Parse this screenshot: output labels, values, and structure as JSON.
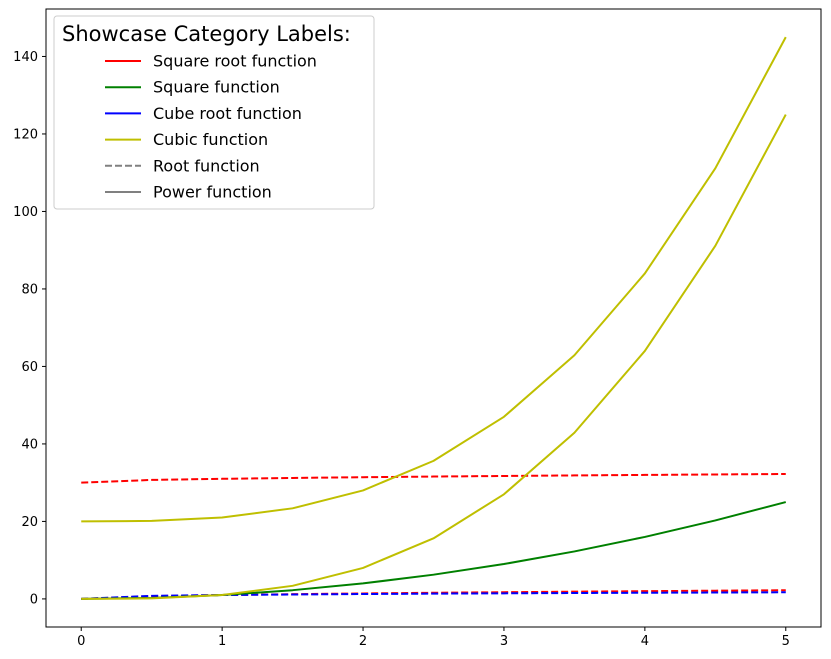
{
  "chart_data": {
    "type": "line",
    "title": "",
    "xlabel": "",
    "ylabel": "",
    "xlim": [
      -0.25,
      5.25
    ],
    "ylim": [
      -7.25,
      152.25
    ],
    "xticks": [
      0,
      1,
      2,
      3,
      4,
      5
    ],
    "yticks": [
      0,
      20,
      40,
      60,
      80,
      100,
      120,
      140
    ],
    "grid": false,
    "legend": {
      "title": "Showcase Category Labels:",
      "placement": "top-left",
      "entries": [
        {
          "label": "Square root function",
          "color": "#ff0000",
          "style": "solid"
        },
        {
          "label": "Square function",
          "color": "#008000",
          "style": "solid"
        },
        {
          "label": "Cube root function",
          "color": "#0000ff",
          "style": "solid"
        },
        {
          "label": "Cubic function",
          "color": "#bfbf00",
          "style": "solid"
        },
        {
          "label": "Root function",
          "color": "#808080",
          "style": "dashed"
        },
        {
          "label": "Power function",
          "color": "#808080",
          "style": "solid"
        }
      ]
    },
    "series": [
      {
        "color": "#ff0000",
        "style": "dashed",
        "x": [
          0,
          0.5,
          1,
          1.5,
          2,
          2.5,
          3,
          3.5,
          4,
          4.5,
          5
        ],
        "y": [
          30,
          30.71,
          31,
          31.22,
          31.41,
          31.58,
          31.73,
          31.87,
          32,
          32.12,
          32.24
        ]
      },
      {
        "color": "#ff0000",
        "style": "dashed",
        "x": [
          0,
          0.5,
          1,
          1.5,
          2,
          2.5,
          3,
          3.5,
          4,
          4.5,
          5
        ],
        "y": [
          0,
          0.71,
          1,
          1.22,
          1.41,
          1.58,
          1.73,
          1.87,
          2,
          2.12,
          2.24
        ]
      },
      {
        "color": "#0000ff",
        "style": "dashed",
        "x": [
          0,
          0.5,
          1,
          1.5,
          2,
          2.5,
          3,
          3.5,
          4,
          4.5,
          5
        ],
        "y": [
          0,
          0.79,
          1,
          1.14,
          1.26,
          1.36,
          1.44,
          1.52,
          1.59,
          1.65,
          1.71
        ]
      },
      {
        "color": "#008000",
        "style": "solid",
        "x": [
          0,
          0.5,
          1,
          1.5,
          2,
          2.5,
          3,
          3.5,
          4,
          4.5,
          5
        ],
        "y": [
          0,
          0.25,
          1,
          2.25,
          4,
          6.25,
          9,
          12.25,
          16,
          20.25,
          25
        ]
      },
      {
        "color": "#bfbf00",
        "style": "solid",
        "x": [
          0,
          0.5,
          1,
          1.5,
          2,
          2.5,
          3,
          3.5,
          4,
          4.5,
          5
        ],
        "y": [
          0,
          0.13,
          1,
          3.38,
          8,
          15.63,
          27,
          42.88,
          64,
          91.13,
          125
        ]
      },
      {
        "color": "#bfbf00",
        "style": "solid",
        "x": [
          0,
          0.5,
          1,
          1.5,
          2,
          2.5,
          3,
          3.5,
          4,
          4.5,
          5
        ],
        "y": [
          20,
          20.13,
          21,
          23.38,
          28,
          35.63,
          47,
          62.88,
          84,
          111.13,
          145
        ]
      }
    ]
  }
}
